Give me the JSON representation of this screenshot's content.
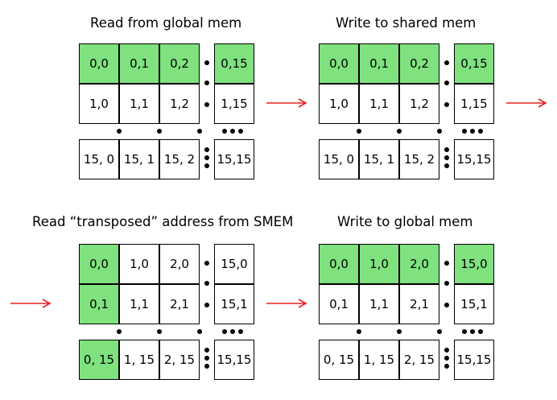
{
  "colors": {
    "highlight": "#7fe27f",
    "arrow": "#e8201e"
  },
  "panels": [
    {
      "title": "Read from global mem",
      "rows": [
        {
          "cells": [
            "0,0",
            "0,1",
            "0,2"
          ],
          "last": "0,15",
          "hl": [
            true,
            true,
            true,
            true
          ]
        },
        {
          "cells": [
            "1,0",
            "1,1",
            "1,2"
          ],
          "last": "1,15",
          "hl": [
            false,
            false,
            false,
            false
          ]
        },
        {
          "cells": [
            "15, 0",
            "15, 1",
            "15, 2"
          ],
          "last": "15,15",
          "hl": [
            false,
            false,
            false,
            false
          ]
        }
      ]
    },
    {
      "title": "Write to shared mem",
      "rows": [
        {
          "cells": [
            "0,0",
            "0,1",
            "0,2"
          ],
          "last": "0,15",
          "hl": [
            true,
            true,
            true,
            true
          ]
        },
        {
          "cells": [
            "1,0",
            "1,1",
            "1,2"
          ],
          "last": "1,15",
          "hl": [
            false,
            false,
            false,
            false
          ]
        },
        {
          "cells": [
            "15, 0",
            "15, 1",
            "15, 2"
          ],
          "last": "15,15",
          "hl": [
            false,
            false,
            false,
            false
          ]
        }
      ]
    },
    {
      "title": "Read “transposed” address from SMEM",
      "rows": [
        {
          "cells": [
            "0,0",
            "1,0",
            "2,0"
          ],
          "last": "15,0",
          "hl": [
            true,
            false,
            false,
            false
          ]
        },
        {
          "cells": [
            "0,1",
            "1,1",
            "2,1"
          ],
          "last": "15,1",
          "hl": [
            true,
            false,
            false,
            false
          ]
        },
        {
          "cells": [
            "0, 15",
            "1, 15",
            "2, 15"
          ],
          "last": "15,15",
          "hl": [
            true,
            false,
            false,
            false
          ]
        }
      ]
    },
    {
      "title": "Write to global mem",
      "rows": [
        {
          "cells": [
            "0,0",
            "1,0",
            "2,0"
          ],
          "last": "15,0",
          "hl": [
            true,
            true,
            true,
            true
          ]
        },
        {
          "cells": [
            "0,1",
            "1,1",
            "2,1"
          ],
          "last": "15,1",
          "hl": [
            false,
            false,
            false,
            false
          ]
        },
        {
          "cells": [
            "0, 15",
            "1, 15",
            "2, 15"
          ],
          "last": "15,15",
          "hl": [
            false,
            false,
            false,
            false
          ]
        }
      ]
    }
  ]
}
